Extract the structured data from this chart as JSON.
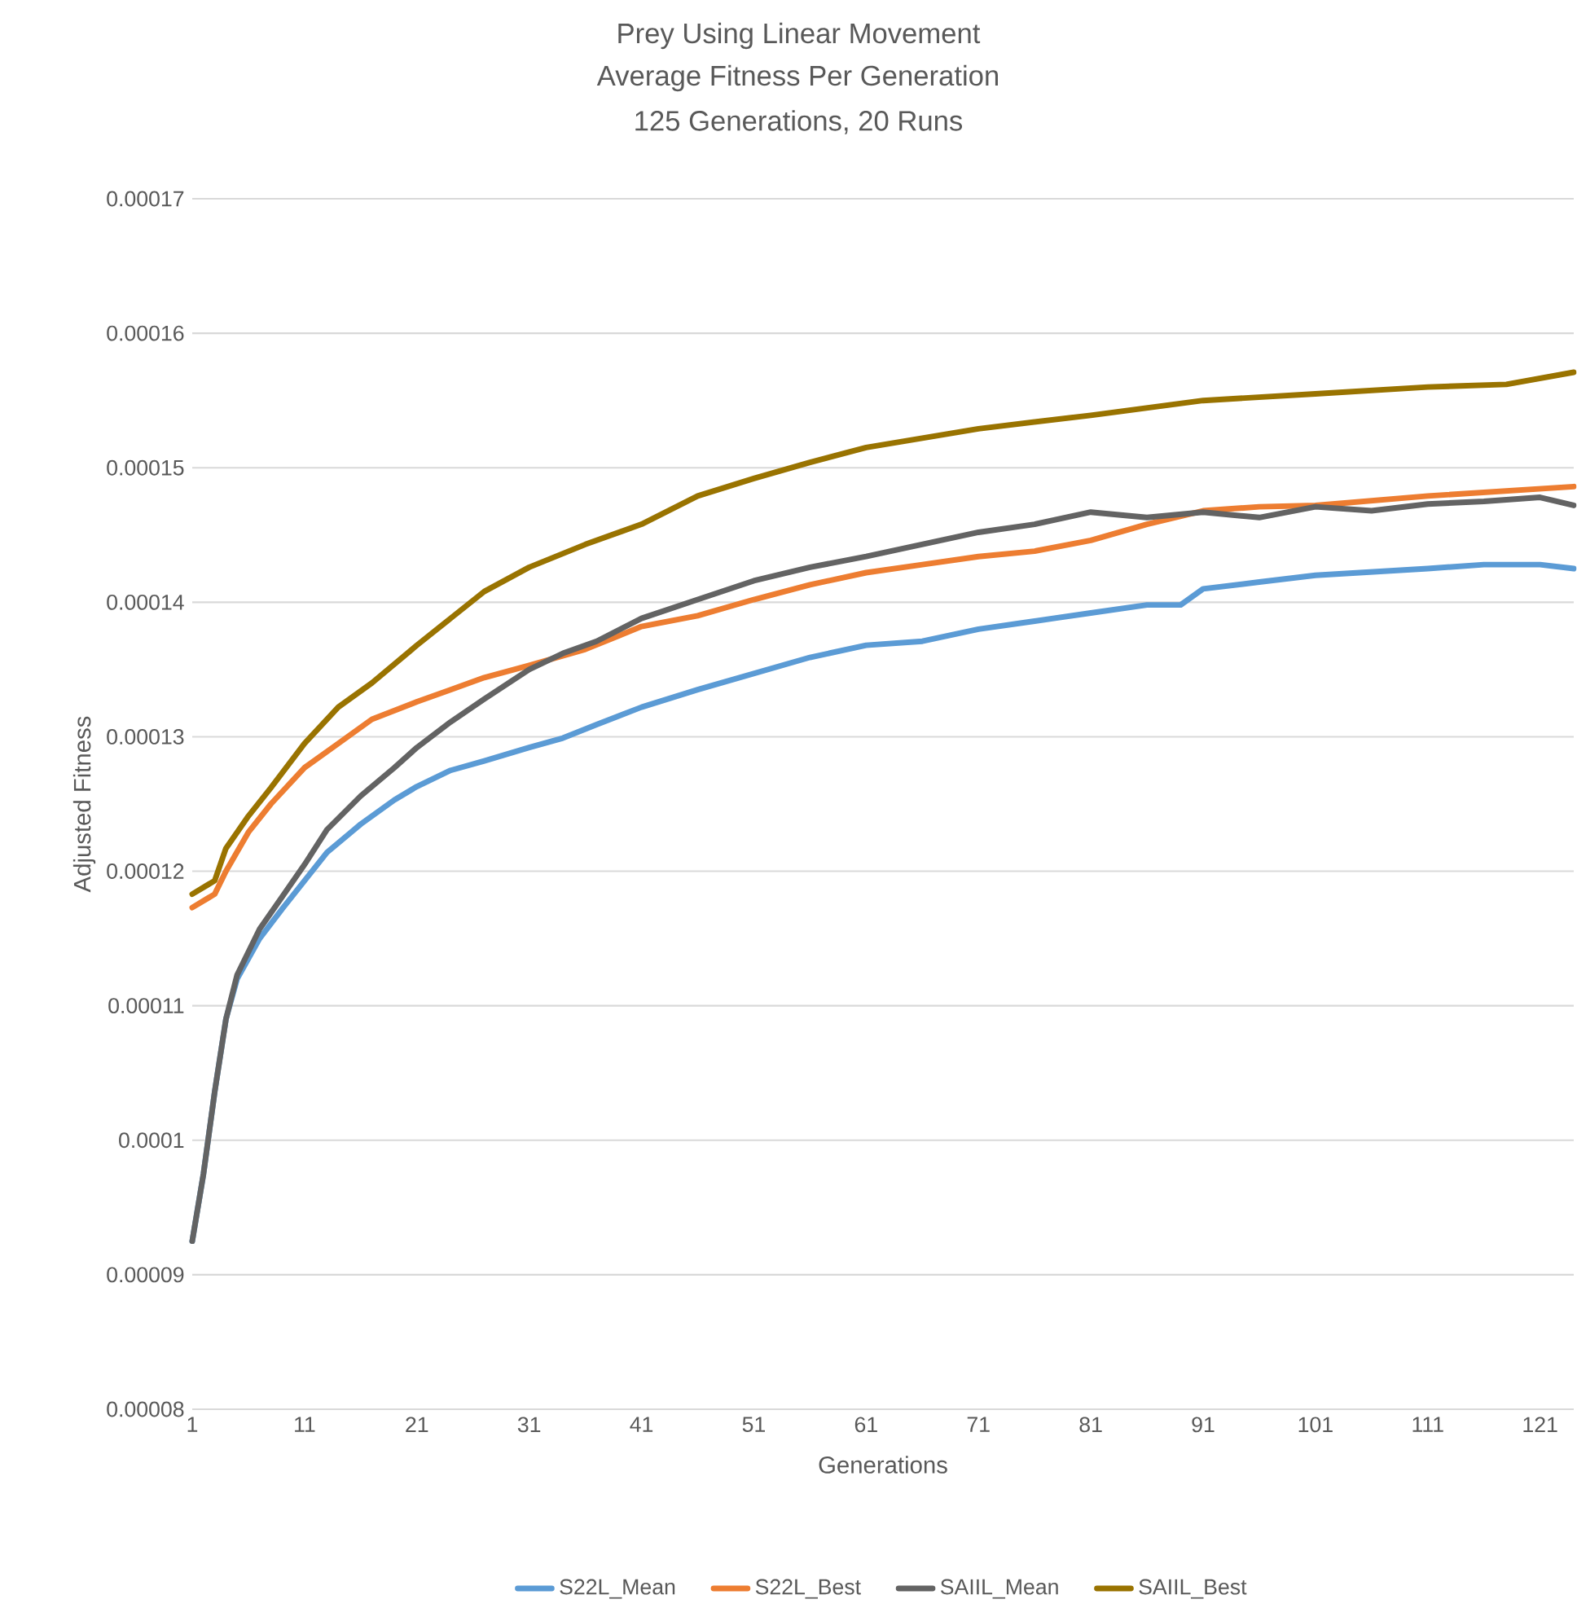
{
  "chart_data": {
    "type": "line",
    "title": "Prey Using  Linear Movement",
    "subtitle": "Average Fitness Per Generation",
    "annotations": [
      "125 Generations, 20 Runs"
    ],
    "xlabel": "Generations",
    "ylabel": "Adjusted Fitness",
    "xlim": [
      1,
      124
    ],
    "xticks": [
      1,
      11,
      21,
      31,
      41,
      51,
      61,
      71,
      81,
      91,
      101,
      111,
      121
    ],
    "ylim": [
      8e-05,
      0.00017
    ],
    "yticks": [
      {
        "value": 8e-05,
        "label": "0.00008"
      },
      {
        "value": 9e-05,
        "label": "0.00009"
      },
      {
        "value": 0.0001,
        "label": "0.0001"
      },
      {
        "value": 0.00011,
        "label": "0.00011"
      },
      {
        "value": 0.00012,
        "label": "0.00012"
      },
      {
        "value": 0.00013,
        "label": "0.00013"
      },
      {
        "value": 0.00014,
        "label": "0.00014"
      },
      {
        "value": 0.00015,
        "label": "0.00015"
      },
      {
        "value": 0.00016,
        "label": "0.00016"
      },
      {
        "value": 0.00017,
        "label": "0.00017"
      }
    ],
    "grid": "y",
    "legend": "bottom",
    "marker": "none",
    "line_style": "solid",
    "series": [
      {
        "name": "S22L_Mean",
        "color": "#5b9bd5",
        "x": [
          1,
          2,
          3,
          4,
          5,
          7,
          9,
          11,
          13,
          16,
          19,
          21,
          24,
          27,
          31,
          34,
          37,
          41,
          46,
          51,
          56,
          61,
          66,
          71,
          76,
          81,
          86,
          89,
          91,
          96,
          101,
          111,
          116,
          121,
          124
        ],
        "values": [
          9.25e-05,
          9.75e-05,
          0.0001036,
          0.000109,
          0.000112,
          0.000115,
          0.0001172,
          0.0001193,
          0.0001214,
          0.0001235,
          0.0001253,
          0.0001263,
          0.0001275,
          0.0001282,
          0.0001292,
          0.0001299,
          0.0001309,
          0.0001322,
          0.0001335,
          0.0001347,
          0.0001359,
          0.0001368,
          0.0001371,
          0.000138,
          0.0001386,
          0.0001392,
          0.0001398,
          0.0001398,
          0.000141,
          0.0001415,
          0.000142,
          0.0001425,
          0.0001428,
          0.0001428,
          0.0001425
        ]
      },
      {
        "name": "S22L_Best",
        "color": "#ed7d31",
        "x": [
          1,
          3,
          4,
          6,
          8,
          11,
          14,
          17,
          21,
          24,
          27,
          31,
          36,
          41,
          46,
          51,
          56,
          61,
          66,
          71,
          76,
          81,
          86,
          91,
          96,
          101,
          111,
          124
        ],
        "values": [
          0.0001173,
          0.0001183,
          0.00012,
          0.0001229,
          0.000125,
          0.0001277,
          0.0001295,
          0.0001313,
          0.0001326,
          0.0001335,
          0.0001344,
          0.0001353,
          0.0001365,
          0.0001382,
          0.000139,
          0.0001402,
          0.0001413,
          0.0001422,
          0.0001428,
          0.0001434,
          0.0001438,
          0.0001446,
          0.0001458,
          0.0001468,
          0.0001471,
          0.0001472,
          0.0001479,
          0.0001486
        ]
      },
      {
        "name": "SAIIL_Mean",
        "color": "#636363",
        "x": [
          1,
          2,
          3,
          4,
          5,
          7,
          9,
          11,
          13,
          16,
          19,
          21,
          24,
          27,
          31,
          34,
          37,
          41,
          46,
          51,
          56,
          61,
          66,
          71,
          76,
          81,
          86,
          91,
          96,
          101,
          106,
          111,
          116,
          121,
          124
        ],
        "values": [
          9.25e-05,
          9.75e-05,
          0.0001036,
          0.000109,
          0.0001123,
          0.0001157,
          0.0001181,
          0.0001205,
          0.0001231,
          0.0001256,
          0.0001277,
          0.0001292,
          0.0001311,
          0.0001328,
          0.000135,
          0.0001362,
          0.0001371,
          0.0001388,
          0.0001402,
          0.0001416,
          0.0001426,
          0.0001434,
          0.0001443,
          0.0001452,
          0.0001458,
          0.0001467,
          0.0001463,
          0.0001467,
          0.0001463,
          0.0001471,
          0.0001468,
          0.0001473,
          0.0001475,
          0.0001478,
          0.0001472
        ]
      },
      {
        "name": "SAIIL_Best",
        "color": "#997300",
        "x": [
          1,
          3,
          4,
          6,
          8,
          11,
          14,
          17,
          21,
          24,
          27,
          31,
          36,
          41,
          46,
          51,
          56,
          61,
          71,
          81,
          91,
          101,
          111,
          118,
          124
        ],
        "values": [
          0.0001183,
          0.0001193,
          0.0001217,
          0.0001241,
          0.0001262,
          0.0001295,
          0.0001322,
          0.000134,
          0.0001368,
          0.0001388,
          0.0001408,
          0.0001426,
          0.0001443,
          0.0001458,
          0.0001479,
          0.0001492,
          0.0001504,
          0.0001515,
          0.0001529,
          0.0001539,
          0.000155,
          0.0001555,
          0.000156,
          0.0001562,
          0.0001571
        ]
      }
    ]
  }
}
